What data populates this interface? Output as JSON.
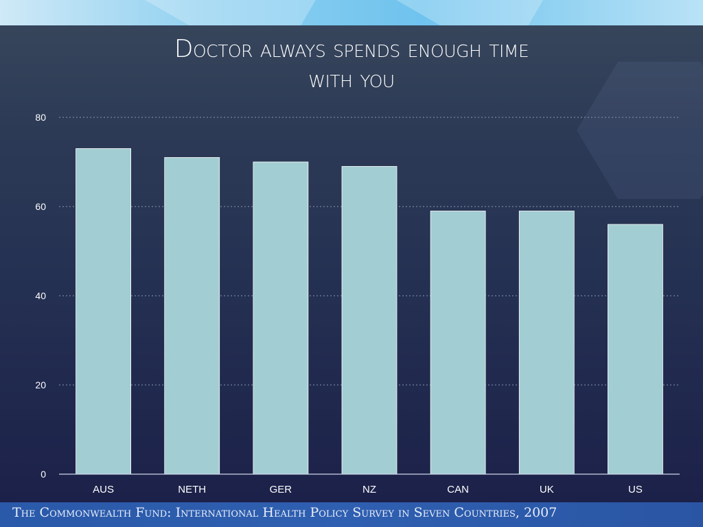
{
  "slide": {
    "title_line1": "Doctor always spends enough time",
    "title_line2": "with you",
    "footer": "The Commonwealth Fund: International Health Policy Survey in Seven Countries, 2007"
  },
  "colors": {
    "bar_fill": "#a2cdd3",
    "bar_stroke": "#ffffff",
    "grid": "#8c96ad",
    "text": "#ffffff"
  },
  "chart_data": {
    "type": "bar",
    "categories": [
      "AUS",
      "NETH",
      "GER",
      "NZ",
      "CAN",
      "UK",
      "US"
    ],
    "values": [
      73,
      71,
      70,
      69,
      59,
      59,
      56
    ],
    "title": "Doctor always spends enough time with you",
    "xlabel": "",
    "ylabel": "",
    "ylim": [
      0,
      80
    ],
    "yticks": [
      0,
      20,
      40,
      60,
      80
    ],
    "grid": true,
    "legend": "none"
  }
}
